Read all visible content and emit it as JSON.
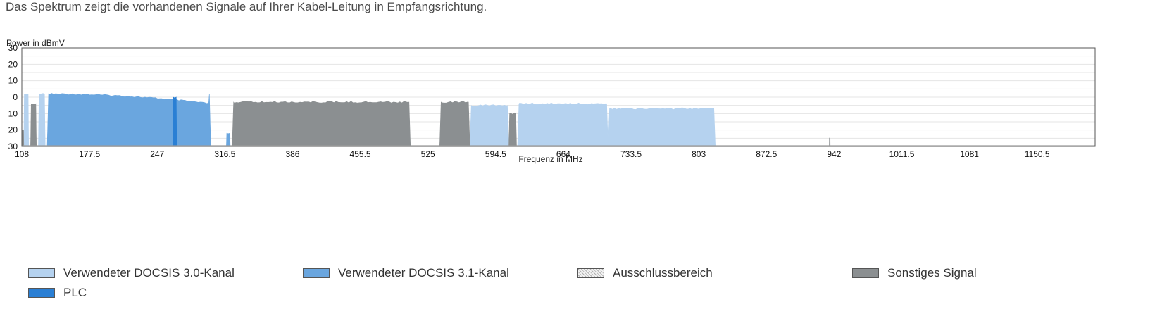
{
  "intro_text": "Das Spektrum zeigt die vorhandenen Signale auf Ihrer Kabel-Leitung in Empfangsrichtung.",
  "chart_data": {
    "type": "area",
    "ylabel": "Power in dBmV",
    "xlabel": "Frequenz in MHz",
    "x_ticks": [
      "108",
      "177.5",
      "247",
      "316.5",
      "386",
      "455.5",
      "525",
      "594.5",
      "664",
      "733.5",
      "803",
      "872.5",
      "942",
      "1011.5",
      "1081",
      "1150.5"
    ],
    "y_ticks": [
      "30",
      "20",
      "10",
      "0",
      "10",
      "20",
      "30"
    ],
    "ylim": [
      -30,
      30
    ],
    "xlim": [
      108,
      1210
    ],
    "grid": true,
    "colors": {
      "docsis30": "#b5d2ef",
      "docsis31": "#6aa6df",
      "plc": "#2a7fd4",
      "other": "#8b8f91",
      "exclusion": "#e6e6e6"
    },
    "series": [
      {
        "name": "Verwendeter DOCSIS 3.0-Kanal",
        "kind": "docsis30",
        "segments": [
          {
            "from": 110,
            "to": 115,
            "level": 2
          },
          {
            "from": 125,
            "to": 132,
            "level": 2
          },
          {
            "from": 568,
            "to": 608,
            "level": -5
          },
          {
            "from": 617,
            "to": 710,
            "level": -4
          },
          {
            "from": 710,
            "to": 820,
            "level": -7
          }
        ]
      },
      {
        "name": "Verwendeter DOCSIS 3.1-Kanal",
        "kind": "docsis31",
        "segments": [
          {
            "from": 134,
            "to": 302,
            "level": 2
          },
          {
            "from": 318,
            "to": 322,
            "level": -22
          }
        ]
      },
      {
        "name": "PLC",
        "kind": "plc",
        "segments": [
          {
            "from": 263,
            "to": 267,
            "level": 0
          }
        ]
      },
      {
        "name": "Sonstiges Signal",
        "kind": "other",
        "segments": [
          {
            "from": 108,
            "to": 110,
            "level": -20
          },
          {
            "from": 117,
            "to": 123,
            "level": -4
          },
          {
            "from": 324,
            "to": 507,
            "level": -3
          },
          {
            "from": 537,
            "to": 568,
            "level": -3
          },
          {
            "from": 608,
            "to": 616,
            "level": -10
          },
          {
            "from": 937,
            "to": 938,
            "level": -25
          }
        ]
      }
    ]
  },
  "legend": [
    {
      "label": "Verwendeter DOCSIS 3.0-Kanal",
      "kind": "docsis30"
    },
    {
      "label": "Verwendeter DOCSIS 3.1-Kanal",
      "kind": "docsis31"
    },
    {
      "label": "Ausschlussbereich",
      "kind": "exclusion"
    },
    {
      "label": "Sonstiges Signal",
      "kind": "other"
    },
    {
      "label": "PLC",
      "kind": "plc"
    }
  ]
}
